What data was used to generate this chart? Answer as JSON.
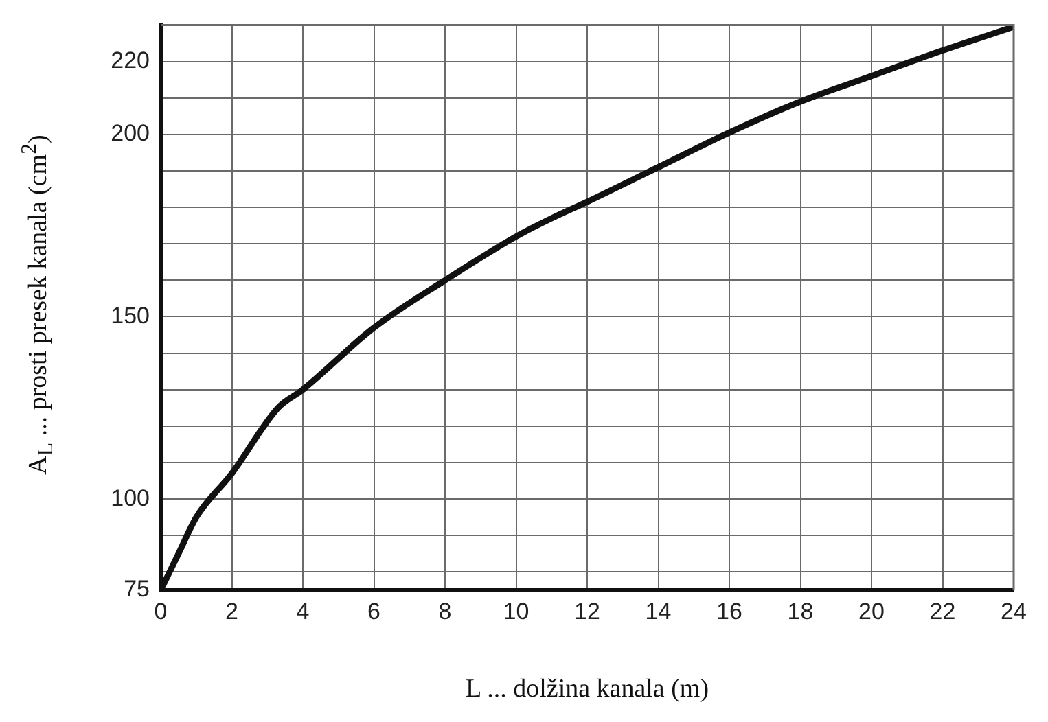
{
  "chart_data": {
    "type": "line",
    "xlabel": "L ... dolžina kanala (m)",
    "ylabel": "A$_{L}$ ... prosti presek kanala (cm$^{2}$)",
    "x": [
      0,
      0.5,
      1,
      2,
      3.3,
      4,
      6,
      8,
      10,
      11,
      12,
      14,
      16,
      18,
      20,
      22,
      24
    ],
    "series": [
      {
        "color": "#111111",
        "values": [
          75,
          85,
          95,
          107,
          125,
          130,
          147,
          160,
          172,
          177,
          181.5,
          191,
          200.5,
          209,
          216,
          223,
          229.5
        ]
      }
    ],
    "xlim": [
      0,
      24
    ],
    "xticks": [
      0,
      2,
      4,
      6,
      8,
      10,
      12,
      14,
      16,
      18,
      20,
      22,
      24
    ],
    "ylim": [
      75,
      230
    ],
    "yticks": [
      75,
      {
        "value": 80,
        "label": null
      },
      {
        "value": 90,
        "label": null
      },
      100,
      {
        "value": 110,
        "label": null
      },
      {
        "value": 120,
        "label": null
      },
      {
        "value": 130,
        "label": null
      },
      {
        "value": 140,
        "label": null
      },
      150,
      {
        "value": 160,
        "label": null
      },
      {
        "value": 170,
        "label": null
      },
      {
        "value": 180,
        "label": null
      },
      {
        "value": 190,
        "label": null
      },
      200,
      {
        "value": 210,
        "label": null
      },
      220
    ],
    "grid": true,
    "legend": false,
    "marker": "none",
    "line_style": "solid"
  }
}
